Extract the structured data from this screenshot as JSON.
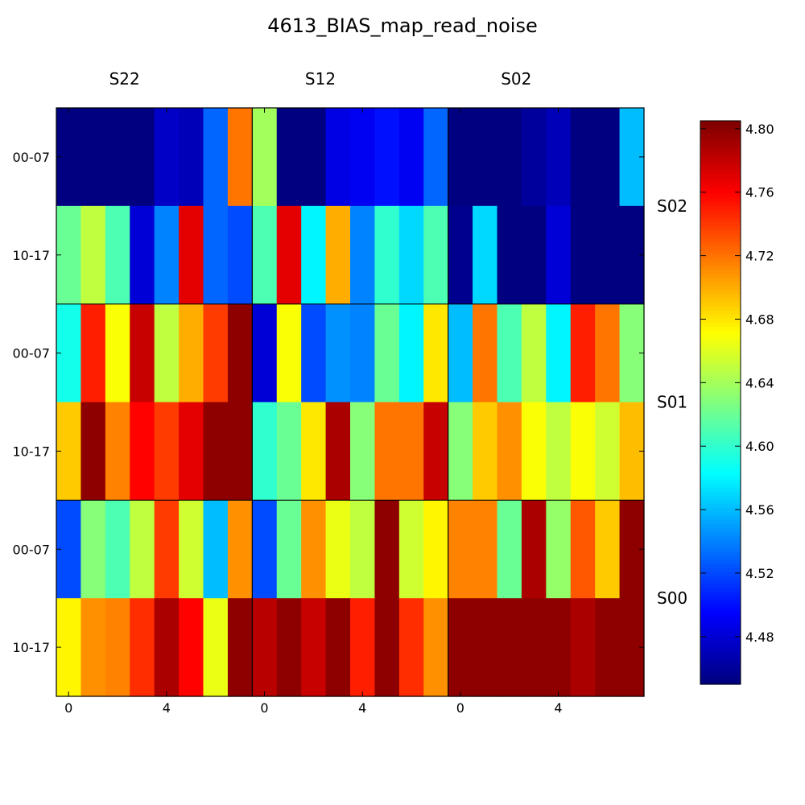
{
  "chart_data": {
    "type": "heatmap",
    "title": "4613_BIAS_map_read_noise",
    "column_sensors": [
      "S22",
      "S12",
      "S02"
    ],
    "row_sensors": [
      "S02",
      "S01",
      "S00"
    ],
    "sub_row_labels": [
      "00-07",
      "10-17"
    ],
    "x_tick_labels": [
      "0",
      "4"
    ],
    "x_tick_values": [
      0,
      4
    ],
    "colormap": "jet",
    "color_range": [
      4.45,
      4.805
    ],
    "colorbar_ticks": [
      4.48,
      4.52,
      4.56,
      4.6,
      4.64,
      4.68,
      4.72,
      4.76,
      4.8
    ],
    "grid": [
      [
        [
          4.45,
          4.45,
          4.45,
          4.45,
          4.475,
          4.47,
          4.53,
          4.72,
          4.64,
          4.45,
          4.45,
          4.485,
          4.49,
          4.5,
          4.49,
          4.53,
          4.45,
          4.45,
          4.45,
          4.46,
          4.47,
          4.45,
          4.45,
          4.56
        ],
        [
          4.62,
          4.65,
          4.61,
          4.48,
          4.54,
          4.77,
          4.53,
          4.52,
          4.61,
          4.77,
          4.58,
          4.7,
          4.54,
          4.6,
          4.57,
          4.61,
          4.455,
          4.57,
          4.45,
          4.45,
          4.48,
          4.45,
          4.45,
          4.45
        ]
      ],
      [
        [
          4.59,
          4.75,
          4.67,
          4.78,
          4.65,
          4.7,
          4.74,
          4.8,
          4.48,
          4.67,
          4.52,
          4.545,
          4.54,
          4.62,
          4.58,
          4.68,
          4.56,
          4.72,
          4.61,
          4.65,
          4.58,
          4.75,
          4.72,
          4.63
        ],
        [
          4.69,
          4.8,
          4.715,
          4.76,
          4.74,
          4.77,
          4.8,
          4.8,
          4.6,
          4.62,
          4.68,
          4.79,
          4.63,
          4.72,
          4.72,
          4.78,
          4.63,
          4.69,
          4.71,
          4.67,
          4.65,
          4.67,
          4.655,
          4.695
        ]
      ],
      [
        [
          4.52,
          4.63,
          4.61,
          4.65,
          4.74,
          4.655,
          4.56,
          4.71,
          4.52,
          4.62,
          4.71,
          4.665,
          4.65,
          4.8,
          4.655,
          4.675,
          4.715,
          4.715,
          4.62,
          4.79,
          4.635,
          4.73,
          4.69,
          4.8
        ],
        [
          4.675,
          4.71,
          4.715,
          4.745,
          4.79,
          4.76,
          4.665,
          4.8,
          4.785,
          4.8,
          4.78,
          4.8,
          4.75,
          4.8,
          4.745,
          4.71,
          4.8,
          4.8,
          4.8,
          4.8,
          4.8,
          4.79,
          4.8,
          4.8
        ]
      ]
    ]
  }
}
